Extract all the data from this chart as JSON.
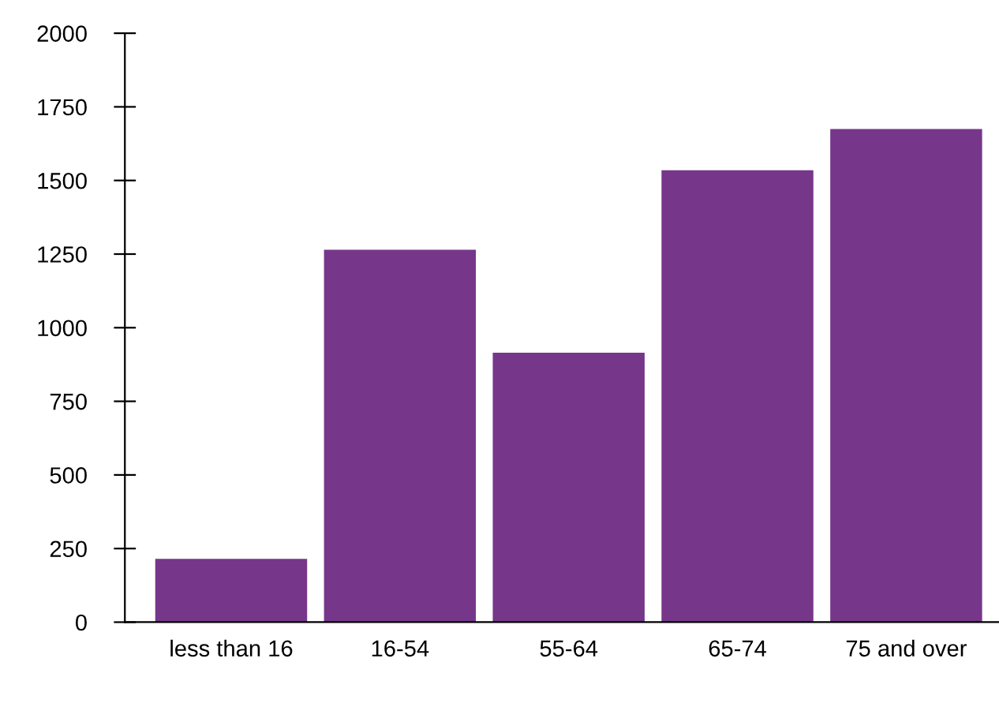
{
  "chart_data": {
    "type": "bar",
    "categories": [
      "less than 16",
      "16-54",
      "55-64",
      "65-74",
      "75 and over"
    ],
    "values": [
      215,
      1265,
      915,
      1535,
      1675
    ],
    "color": "#76378b",
    "ylim": [
      0,
      2000
    ],
    "yticks": [
      0,
      250,
      500,
      750,
      1000,
      1250,
      1500,
      1750,
      2000
    ],
    "grid": false
  }
}
